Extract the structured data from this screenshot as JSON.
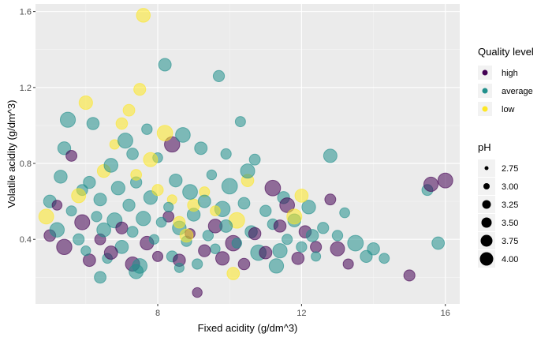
{
  "chart_data": {
    "type": "scatter",
    "xlabel": "Fixed acidity (g/dm^3)",
    "ylabel": "Volatile acidity (g/dm^3)",
    "xlim": [
      4.6,
      16.4
    ],
    "ylim": [
      0.06,
      1.64
    ],
    "x_ticks": [
      "8",
      "12",
      "16"
    ],
    "y_ticks": [
      "0.4",
      "0.8",
      "1.2",
      "1.6"
    ],
    "x_tick_values": [
      8,
      12,
      16
    ],
    "y_tick_values": [
      0.4,
      0.8,
      1.2,
      1.6
    ],
    "x_minor_values": [
      6,
      10,
      14
    ],
    "y_minor_values": [
      0.2,
      0.6,
      1.0,
      1.4
    ],
    "grid": true,
    "panel_background": "#ebebeb",
    "legend_placement": "right",
    "color_legend": {
      "title": "Quality level",
      "entries": [
        {
          "label": "high",
          "color": "#440154"
        },
        {
          "label": "average",
          "color": "#21908c"
        },
        {
          "label": "low",
          "color": "#fde725"
        }
      ]
    },
    "size_legend": {
      "title": "pH",
      "entries": [
        "2.75",
        "3.00",
        "3.25",
        "3.50",
        "3.75",
        "4.00"
      ],
      "values": [
        2.75,
        3.0,
        3.25,
        3.5,
        3.75,
        4.0
      ]
    },
    "series": [
      {
        "name": "average",
        "color": "#21908c",
        "points": [
          [
            5.0,
            0.6
          ],
          [
            5.2,
            0.45
          ],
          [
            5.3,
            0.73
          ],
          [
            5.5,
            1.03
          ],
          [
            5.6,
            0.55
          ],
          [
            5.8,
            0.4
          ],
          [
            5.9,
            0.66
          ],
          [
            6.0,
            0.34
          ],
          [
            6.2,
            1.01
          ],
          [
            6.3,
            0.52
          ],
          [
            6.4,
            0.61
          ],
          [
            6.5,
            0.45
          ],
          [
            6.6,
            0.3
          ],
          [
            6.7,
            0.79
          ],
          [
            6.8,
            0.5
          ],
          [
            6.9,
            0.67
          ],
          [
            7.0,
            0.36
          ],
          [
            7.1,
            0.92
          ],
          [
            7.2,
            0.58
          ],
          [
            7.3,
            0.44
          ],
          [
            7.4,
            0.7
          ],
          [
            7.5,
            0.26
          ],
          [
            7.6,
            0.51
          ],
          [
            7.7,
            0.98
          ],
          [
            7.8,
            0.62
          ],
          [
            7.9,
            0.4
          ],
          [
            8.0,
            0.83
          ],
          [
            8.1,
            0.49
          ],
          [
            8.2,
            1.32
          ],
          [
            8.3,
            0.57
          ],
          [
            8.4,
            0.31
          ],
          [
            8.5,
            0.71
          ],
          [
            8.6,
            0.46
          ],
          [
            8.7,
            0.95
          ],
          [
            8.8,
            0.39
          ],
          [
            8.9,
            0.65
          ],
          [
            9.0,
            0.53
          ],
          [
            9.1,
            0.27
          ],
          [
            9.2,
            0.88
          ],
          [
            9.3,
            0.6
          ],
          [
            9.4,
            0.42
          ],
          [
            9.5,
            0.74
          ],
          [
            9.6,
            0.35
          ],
          [
            9.7,
            1.26
          ],
          [
            9.8,
            0.56
          ],
          [
            9.9,
            0.47
          ],
          [
            10.0,
            0.68
          ],
          [
            10.2,
            0.38
          ],
          [
            10.3,
            1.02
          ],
          [
            10.4,
            0.59
          ],
          [
            10.6,
            0.44
          ],
          [
            10.7,
            0.82
          ],
          [
            10.8,
            0.33
          ],
          [
            11.0,
            0.55
          ],
          [
            11.2,
            0.48
          ],
          [
            11.3,
            0.26
          ],
          [
            11.5,
            0.62
          ],
          [
            11.6,
            0.4
          ],
          [
            11.8,
            0.5
          ],
          [
            12.0,
            0.36
          ],
          [
            12.2,
            0.57
          ],
          [
            12.4,
            0.31
          ],
          [
            12.6,
            0.46
          ],
          [
            12.8,
            0.84
          ],
          [
            13.0,
            0.42
          ],
          [
            13.2,
            0.54
          ],
          [
            13.5,
            0.38
          ],
          [
            13.8,
            0.31
          ],
          [
            14.0,
            0.35
          ],
          [
            14.3,
            0.3
          ],
          [
            15.5,
            0.66
          ],
          [
            15.8,
            0.38
          ],
          [
            5.4,
            0.88
          ],
          [
            6.1,
            0.7
          ],
          [
            7.3,
            0.85
          ],
          [
            8.6,
            0.25
          ],
          [
            9.9,
            0.85
          ],
          [
            10.5,
            0.76
          ],
          [
            11.4,
            0.34
          ],
          [
            12.3,
            0.42
          ],
          [
            6.4,
            0.2
          ],
          [
            7.4,
            0.23
          ]
        ]
      },
      {
        "name": "high",
        "color": "#440154",
        "points": [
          [
            5.0,
            0.42
          ],
          [
            5.2,
            0.58
          ],
          [
            5.4,
            0.36
          ],
          [
            5.6,
            0.84
          ],
          [
            5.9,
            0.49
          ],
          [
            6.1,
            0.29
          ],
          [
            6.4,
            0.4
          ],
          [
            6.7,
            0.33
          ],
          [
            7.0,
            0.46
          ],
          [
            7.3,
            0.27
          ],
          [
            7.7,
            0.38
          ],
          [
            8.0,
            0.31
          ],
          [
            8.3,
            0.52
          ],
          [
            8.6,
            0.29
          ],
          [
            8.9,
            0.43
          ],
          [
            9.1,
            0.12
          ],
          [
            9.3,
            0.34
          ],
          [
            9.6,
            0.47
          ],
          [
            9.8,
            0.3
          ],
          [
            10.1,
            0.38
          ],
          [
            10.4,
            0.27
          ],
          [
            10.7,
            0.43
          ],
          [
            11.0,
            0.33
          ],
          [
            11.4,
            0.47
          ],
          [
            11.6,
            0.58
          ],
          [
            11.9,
            0.3
          ],
          [
            12.1,
            0.44
          ],
          [
            12.4,
            0.36
          ],
          [
            12.8,
            0.61
          ],
          [
            13.0,
            0.35
          ],
          [
            13.3,
            0.27
          ],
          [
            15.0,
            0.21
          ],
          [
            15.6,
            0.69
          ],
          [
            16.0,
            0.71
          ],
          [
            11.2,
            0.67
          ],
          [
            8.4,
            0.9
          ]
        ]
      },
      {
        "name": "low",
        "color": "#fde725",
        "points": [
          [
            4.9,
            0.52
          ],
          [
            5.8,
            0.63
          ],
          [
            6.0,
            1.12
          ],
          [
            6.5,
            0.76
          ],
          [
            6.8,
            0.9
          ],
          [
            7.0,
            1.01
          ],
          [
            7.2,
            1.08
          ],
          [
            7.4,
            0.74
          ],
          [
            7.5,
            1.19
          ],
          [
            7.6,
            1.58
          ],
          [
            7.8,
            0.82
          ],
          [
            8.0,
            0.66
          ],
          [
            8.2,
            0.96
          ],
          [
            8.4,
            0.61
          ],
          [
            8.6,
            0.49
          ],
          [
            8.8,
            0.42
          ],
          [
            9.0,
            0.58
          ],
          [
            9.6,
            0.55
          ],
          [
            10.2,
            0.5
          ],
          [
            10.5,
            0.71
          ],
          [
            11.8,
            0.52
          ],
          [
            12.0,
            0.63
          ],
          [
            10.1,
            0.22
          ],
          [
            9.3,
            0.65
          ]
        ]
      }
    ]
  }
}
